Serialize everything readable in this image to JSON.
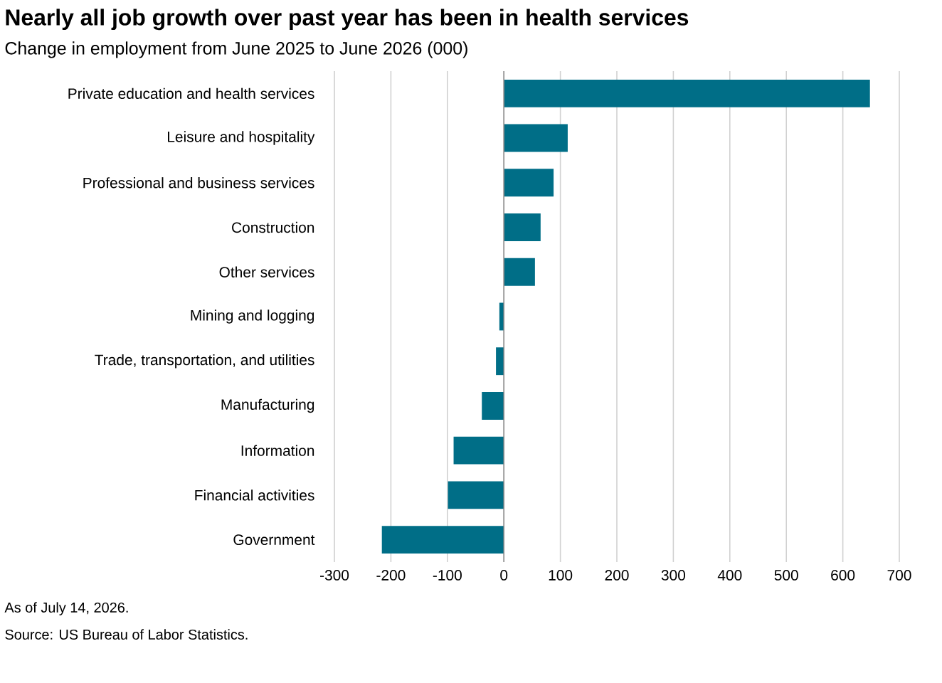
{
  "chart_data": {
    "type": "bar",
    "orientation": "horizontal",
    "title": "Nearly all job growth over past year has been in health services",
    "subtitle": "Change in employment from June 2025 to June 2026 (000)",
    "categories": [
      "Private education and health services",
      "Leisure and hospitality",
      "Professional and business services",
      "Construction",
      "Other services",
      "Mining and logging",
      "Trade, transportation, and utilities",
      "Manufacturing",
      "Information",
      "Financial activities",
      "Government"
    ],
    "values": [
      648,
      113,
      88,
      65,
      55,
      -8,
      -14,
      -39,
      -89,
      -99,
      -216
    ],
    "color": "#006e87",
    "xlim": [
      -300,
      700
    ],
    "xticks": [
      -300,
      -200,
      -100,
      0,
      100,
      200,
      300,
      400,
      500,
      600,
      700
    ],
    "grid": "x",
    "annotations": [
      "As of July 14, 2026.",
      "Source: US Bureau of Labor Statistics."
    ]
  }
}
